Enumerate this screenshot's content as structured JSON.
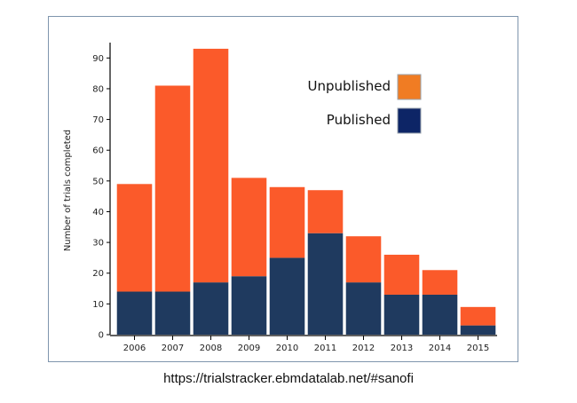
{
  "caption": "https://trialstracker.ebmdatalab.net/#sanofi",
  "chart_data": {
    "type": "bar",
    "stacked": true,
    "categories": [
      "2006",
      "2007",
      "2008",
      "2009",
      "2010",
      "2011",
      "2012",
      "2013",
      "2014",
      "2015"
    ],
    "series": [
      {
        "name": "Published",
        "color": "#1f3a5f",
        "values": [
          14,
          14,
          17,
          19,
          25,
          33,
          17,
          13,
          13,
          3
        ]
      },
      {
        "name": "Unpublished",
        "color": "#fb5a2a",
        "values": [
          35,
          67,
          76,
          32,
          23,
          14,
          15,
          13,
          8,
          6
        ]
      }
    ],
    "ylabel": "Number of trials completed",
    "xlabel": "",
    "ylim": [
      0,
      95
    ],
    "yticks": [
      0,
      10,
      20,
      30,
      40,
      50,
      60,
      70,
      80,
      90
    ],
    "legend": {
      "placement": "top-right",
      "items": [
        {
          "label": "Unpublished",
          "color": "#f07c23"
        },
        {
          "label": "Published",
          "color": "#0d2566"
        }
      ]
    }
  }
}
